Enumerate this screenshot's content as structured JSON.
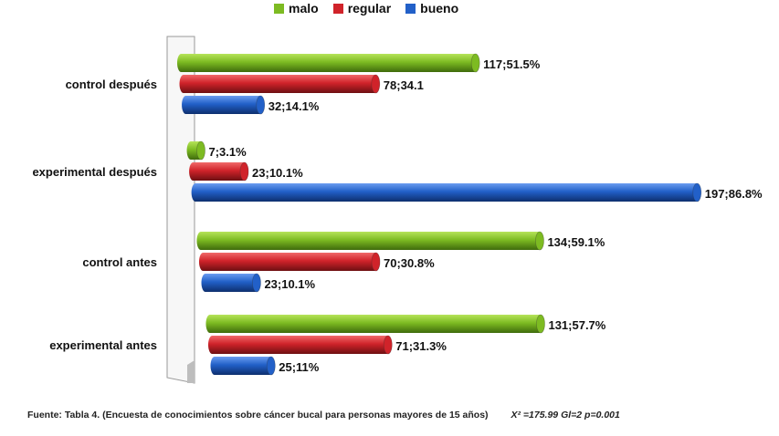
{
  "legend": [
    {
      "name": "malo",
      "color": "#7dbb22"
    },
    {
      "name": "regular",
      "color": "#d0232a"
    },
    {
      "name": "bueno",
      "color": "#2260c8"
    }
  ],
  "chart_data": {
    "type": "bar",
    "orientation": "horizontal",
    "categories": [
      "control después",
      "experimental después",
      "control antes",
      "experimental antes"
    ],
    "series": [
      {
        "name": "malo",
        "color": "#7dbb22",
        "values": [
          51.5,
          3.1,
          59.1,
          57.7
        ],
        "labels": [
          "117;51.5%",
          "7;3.1%",
          "134;59.1%",
          "131;57.7%"
        ]
      },
      {
        "name": "regular",
        "color": "#d0232a",
        "values": [
          34.1,
          10.1,
          30.8,
          31.3
        ],
        "labels": [
          "78;34.1",
          "23;10.1%",
          "70;30.8%",
          "71;31.3%"
        ]
      },
      {
        "name": "bueno",
        "color": "#2260c8",
        "values": [
          14.1,
          86.8,
          10.1,
          11
        ],
        "labels": [
          "32;14.1%",
          "197;86.8%",
          "23;10.1%",
          "25;11%"
        ]
      }
    ],
    "xlim": [
      0,
      100
    ],
    "legend_position": "top",
    "grid": false
  },
  "footer": {
    "source": "Fuente: Tabla 4. (Encuesta de conocimientos sobre cáncer bucal para personas mayores de 15 años)",
    "stats": "X² =175.99    Gl=2    p=0.001"
  }
}
